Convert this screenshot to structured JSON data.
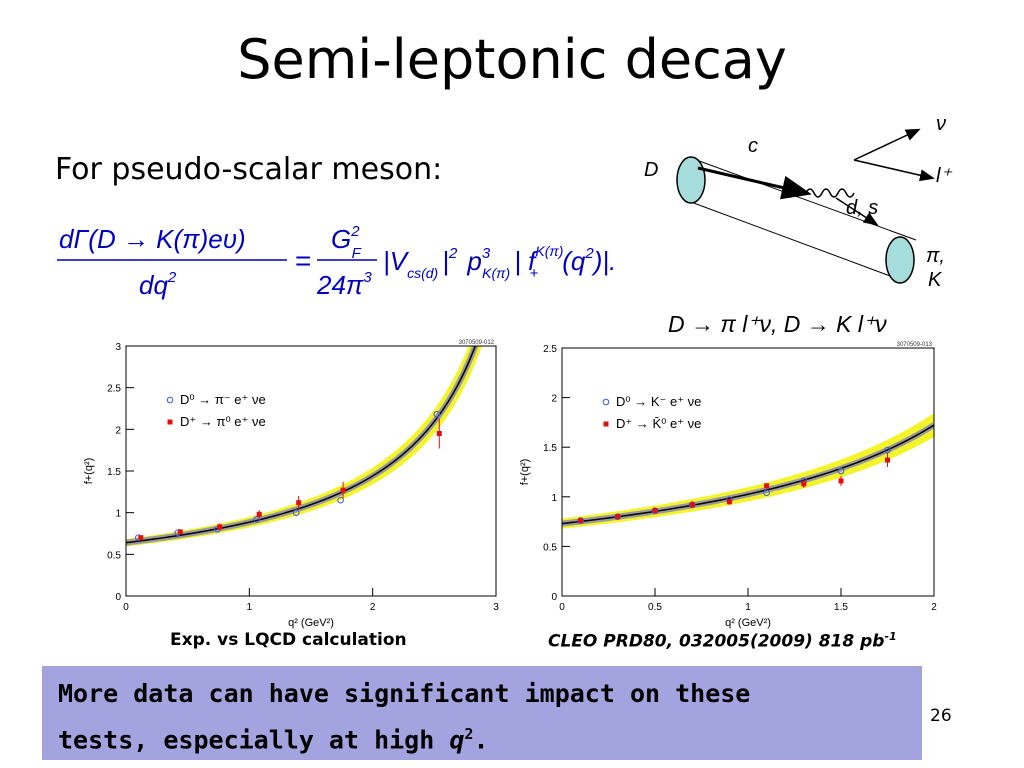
{
  "slide": {
    "title": "Semi-leptonic decay",
    "subhead": "For pseudo-scalar meson:",
    "page_number": "26"
  },
  "formula": {
    "num_lhs": "dΓ(D → K(π)eυ)",
    "den_lhs": "dq",
    "num_rhs": "G",
    "den_rhs": "24π",
    "tail": "|V",
    "tail_sub": "cs(d)",
    "tail_mid": "|",
    "p": "p",
    "p_sub": "K(π)",
    "f": "| f",
    "f_sup": "K(π)",
    "f_sub": "+",
    "q": "(q",
    "end": ")|."
  },
  "diagram": {
    "labels": [
      "D",
      "c",
      "ν",
      "l⁺",
      "d, s",
      "π,",
      "K"
    ]
  },
  "processes": "D → π l⁺ν,   D → K l⁺ν",
  "captions": {
    "left": "Exp. vs LQCD calculation",
    "right": "CLEO PRD80, 032005(2009)  818 pb",
    "right_sup": "-1"
  },
  "callout": {
    "line1": "More data can have significant impact on these",
    "line2_prefix": "tests, especially at high ",
    "line2_var": "q",
    "line2_sup": "2",
    "line2_suffix": "."
  },
  "chart_data": [
    {
      "type": "scatter",
      "tag": "3070509-012",
      "xlabel": "q² (GeV²)",
      "ylabel": "f+(q²)",
      "xlim": [
        0,
        3
      ],
      "ylim": [
        0,
        3
      ],
      "xticks": [
        "0",
        "1",
        "2",
        "3"
      ],
      "yticks": [
        "0",
        "0.5",
        "1",
        "1.5",
        "2",
        "2.5",
        "3"
      ],
      "legend_placement": "top-left",
      "curve": {
        "f0": 0.64,
        "pole": 3.6,
        "band": 0.07
      },
      "series": [
        {
          "name": "D⁰ → π⁻ e⁺ νe",
          "color": "#3b5bdb",
          "marker": "open-circle",
          "x": [
            0.1,
            0.42,
            0.74,
            1.06,
            1.38,
            1.74,
            2.52
          ],
          "y": [
            0.7,
            0.76,
            0.8,
            0.92,
            1.0,
            1.15,
            2.18
          ]
        },
        {
          "name": "D⁺ → π⁰ e⁺ νe",
          "color": "#e01010",
          "marker": "filled-square",
          "x": [
            0.12,
            0.44,
            0.76,
            1.08,
            1.4,
            1.76,
            2.54
          ],
          "y": [
            0.7,
            0.77,
            0.83,
            0.98,
            1.12,
            1.27,
            1.95
          ],
          "err": [
            0.02,
            0.03,
            0.04,
            0.05,
            0.08,
            0.1,
            0.18
          ]
        }
      ]
    },
    {
      "type": "scatter",
      "tag": "3070509-013",
      "xlabel": "q² (GeV²)",
      "ylabel": "f+(q²)",
      "xlim": [
        0,
        2
      ],
      "ylim": [
        0,
        2.5
      ],
      "xticks": [
        "0",
        "0.5",
        "1",
        "1.5",
        "2"
      ],
      "yticks": [
        "0",
        "0.5",
        "1",
        "1.5",
        "2",
        "2.5"
      ],
      "legend_placement": "top-left",
      "curve": {
        "f0": 0.73,
        "pole": 3.47,
        "band": 0.07
      },
      "series": [
        {
          "name": "D⁰ → K⁻ e⁺ νe",
          "color": "#3b5bdb",
          "marker": "open-circle",
          "x": [
            0.1,
            0.3,
            0.5,
            0.7,
            0.9,
            1.1,
            1.3,
            1.5,
            1.75
          ],
          "y": [
            0.76,
            0.8,
            0.86,
            0.92,
            0.97,
            1.04,
            1.16,
            1.26,
            1.47
          ]
        },
        {
          "name": "D⁺ → K̄⁰ e⁺ νe",
          "color": "#e01010",
          "marker": "filled-square",
          "x": [
            0.1,
            0.3,
            0.5,
            0.7,
            0.9,
            1.1,
            1.3,
            1.5,
            1.75
          ],
          "y": [
            0.76,
            0.8,
            0.86,
            0.92,
            0.95,
            1.11,
            1.13,
            1.16,
            1.37
          ],
          "err": [
            0.02,
            0.02,
            0.02,
            0.03,
            0.03,
            0.03,
            0.04,
            0.05,
            0.07
          ]
        }
      ]
    }
  ]
}
